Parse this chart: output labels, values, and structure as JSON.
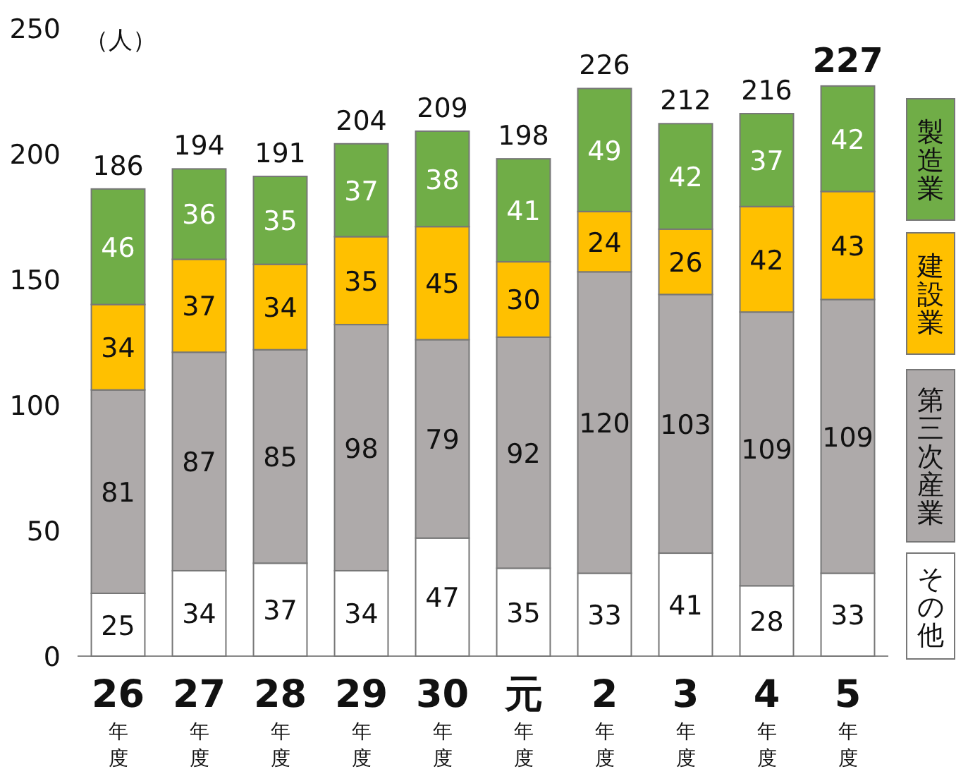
{
  "chart_data": {
    "type": "bar",
    "stacked": true,
    "ylabel": "（人）",
    "categories": [
      "26年度",
      "27年度",
      "28年度",
      "29年度",
      "30年度",
      "元年度",
      "2年度",
      "3年度",
      "4年度",
      "5年度"
    ],
    "series": [
      {
        "name": "その他",
        "color": "#ffffff",
        "values": [
          25,
          34,
          37,
          34,
          47,
          35,
          33,
          41,
          28,
          33
        ]
      },
      {
        "name": "第三次産業",
        "color": "#aeaaaa",
        "values": [
          81,
          87,
          85,
          98,
          79,
          92,
          120,
          103,
          109,
          109
        ]
      },
      {
        "name": "建設業",
        "color": "#ffc000",
        "values": [
          34,
          37,
          34,
          35,
          45,
          30,
          24,
          26,
          42,
          43
        ]
      },
      {
        "name": "製造業",
        "color": "#70ad47",
        "values": [
          46,
          36,
          35,
          37,
          38,
          41,
          49,
          42,
          37,
          42
        ]
      }
    ],
    "totals": [
      "186",
      "194",
      "191",
      "204",
      "209",
      "198",
      "226",
      "212",
      "216",
      "227"
    ],
    "ylim": [
      0,
      250
    ],
    "yticks": [
      0,
      50,
      100,
      150,
      200,
      250
    ],
    "data_labels": true,
    "legend": "right"
  }
}
